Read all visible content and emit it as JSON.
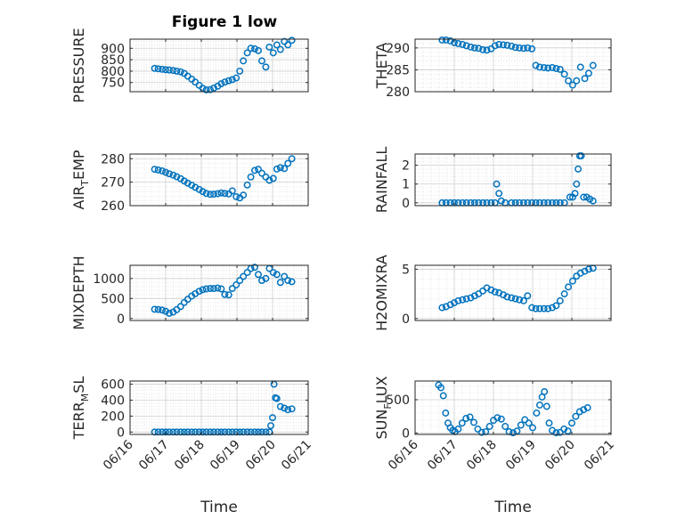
{
  "figure_title": "Figure 1 low",
  "marker_color": "#0072BD",
  "chart_data": [
    {
      "type": "scatter",
      "panel": "top-left",
      "title": "Figure 1 low",
      "ylabel": "PRESSURE",
      "ylim": [
        710,
        940
      ],
      "yticks": [
        750,
        800,
        850,
        900
      ],
      "x": [
        16.69,
        16.79,
        16.9,
        17.0,
        17.1,
        17.21,
        17.31,
        17.42,
        17.52,
        17.62,
        17.73,
        17.83,
        17.94,
        18.04,
        18.14,
        18.25,
        18.35,
        18.46,
        18.56,
        18.66,
        18.77,
        18.87,
        18.98,
        19.08,
        19.18,
        19.29,
        19.39,
        19.5,
        19.6,
        19.7,
        19.81,
        19.91,
        20.02,
        20.12,
        20.22,
        20.33,
        20.43,
        20.54
      ],
      "values": [
        812,
        810,
        808,
        806,
        805,
        803,
        800,
        797,
        790,
        778,
        765,
        752,
        738,
        725,
        718,
        719,
        726,
        734,
        745,
        752,
        758,
        763,
        770,
        800,
        845,
        880,
        900,
        898,
        890,
        845,
        818,
        905,
        880,
        915,
        895,
        930,
        915,
        935
      ]
    },
    {
      "type": "scatter",
      "panel": "top-right",
      "ylabel": "THETA",
      "ylim": [
        280,
        292
      ],
      "yticks": [
        280,
        285,
        290
      ],
      "x": [
        16.69,
        16.79,
        16.9,
        17.0,
        17.1,
        17.21,
        17.31,
        17.42,
        17.52,
        17.62,
        17.73,
        17.83,
        17.94,
        18.04,
        18.14,
        18.25,
        18.35,
        18.46,
        18.56,
        18.66,
        18.77,
        18.87,
        18.98,
        19.08,
        19.18,
        19.29,
        19.39,
        19.5,
        19.6,
        19.7,
        19.81,
        19.91,
        20.02,
        20.12,
        20.22,
        20.33,
        20.43,
        20.54
      ],
      "values": [
        291.8,
        291.8,
        291.6,
        291.2,
        291.0,
        290.8,
        290.5,
        290.2,
        290.0,
        289.9,
        289.6,
        289.5,
        289.8,
        290.5,
        290.8,
        290.7,
        290.6,
        290.4,
        290.1,
        290.0,
        289.9,
        290.0,
        289.8,
        286.0,
        285.6,
        285.5,
        285.4,
        285.5,
        285.3,
        285.1,
        284.0,
        282.5,
        281.5,
        282.5,
        285.6,
        283.0,
        284.2,
        286.0
      ]
    },
    {
      "type": "scatter",
      "panel": "row2-left",
      "ylabel": "AIR_TEMP",
      "ylim": [
        260,
        282
      ],
      "yticks": [
        260,
        270,
        280
      ],
      "x": [
        16.69,
        16.79,
        16.9,
        17.0,
        17.1,
        17.21,
        17.31,
        17.42,
        17.52,
        17.62,
        17.73,
        17.83,
        17.94,
        18.04,
        18.14,
        18.25,
        18.35,
        18.46,
        18.56,
        18.66,
        18.77,
        18.87,
        18.98,
        19.08,
        19.18,
        19.29,
        19.39,
        19.5,
        19.6,
        19.7,
        19.81,
        19.91,
        20.02,
        20.12,
        20.22,
        20.33,
        20.43,
        20.54
      ],
      "values": [
        275.5,
        275.2,
        274.8,
        274.2,
        273.6,
        273.0,
        272.3,
        271.5,
        270.5,
        269.6,
        268.7,
        267.8,
        266.9,
        266.0,
        265.2,
        264.8,
        264.9,
        265.1,
        265.4,
        265.2,
        265.0,
        266.3,
        263.8,
        263.3,
        264.5,
        268.8,
        272.2,
        275.0,
        275.5,
        273.8,
        272.2,
        270.8,
        271.6,
        275.6,
        276.2,
        275.8,
        278.0,
        280.0
      ]
    },
    {
      "type": "scatter",
      "panel": "row2-right",
      "ylabel": "RAINFALL",
      "ylim": [
        -0.15,
        2.6
      ],
      "yticks": [
        0,
        1,
        2
      ],
      "x": [
        16.69,
        16.79,
        16.9,
        17.0,
        17.1,
        17.21,
        17.31,
        17.42,
        17.52,
        17.62,
        17.73,
        17.83,
        17.94,
        18.04,
        18.08,
        18.14,
        18.2,
        18.3,
        18.46,
        18.56,
        18.66,
        18.77,
        18.87,
        18.98,
        19.08,
        19.18,
        19.29,
        19.39,
        19.5,
        19.6,
        19.7,
        19.81,
        19.95,
        20.02,
        20.08,
        20.12,
        20.16,
        20.2,
        20.24,
        20.3,
        20.38,
        20.46,
        20.54
      ],
      "values": [
        0,
        0,
        0,
        0,
        0,
        0,
        0,
        0,
        0,
        0,
        0,
        0,
        0,
        0,
        1.0,
        0.5,
        0.1,
        0,
        0,
        0,
        0,
        0,
        0,
        0,
        0,
        0,
        0,
        0,
        0,
        0,
        0,
        0,
        0.3,
        0.3,
        0.5,
        1.0,
        1.8,
        2.5,
        2.5,
        0.3,
        0.3,
        0.2,
        0.1
      ]
    },
    {
      "type": "scatter",
      "panel": "row3-left",
      "ylabel": "MIXDEPTH",
      "ylim": [
        -50,
        1330
      ],
      "yticks": [
        0,
        500,
        1000
      ],
      "x": [
        16.69,
        16.79,
        16.9,
        17.0,
        17.1,
        17.21,
        17.31,
        17.42,
        17.52,
        17.62,
        17.73,
        17.83,
        17.94,
        18.04,
        18.14,
        18.25,
        18.35,
        18.46,
        18.56,
        18.66,
        18.77,
        18.87,
        18.98,
        19.08,
        19.18,
        19.29,
        19.39,
        19.5,
        19.6,
        19.7,
        19.81,
        19.91,
        20.02,
        20.12,
        20.22,
        20.33,
        20.43,
        20.54
      ],
      "values": [
        230,
        225,
        210,
        180,
        130,
        160,
        220,
        300,
        400,
        480,
        560,
        620,
        680,
        720,
        740,
        750,
        750,
        760,
        740,
        600,
        590,
        750,
        840,
        950,
        1050,
        1150,
        1250,
        1280,
        1100,
        950,
        1000,
        1250,
        1150,
        1100,
        900,
        1050,
        950,
        920
      ]
    },
    {
      "type": "scatter",
      "panel": "row3-right",
      "ylabel": "H2OMIXRA",
      "ylim": [
        -0.2,
        5.4
      ],
      "yticks": [
        0,
        5
      ],
      "x": [
        16.69,
        16.79,
        16.9,
        17.0,
        17.1,
        17.21,
        17.31,
        17.42,
        17.52,
        17.62,
        17.73,
        17.83,
        17.94,
        18.04,
        18.14,
        18.25,
        18.35,
        18.46,
        18.56,
        18.66,
        18.77,
        18.87,
        18.98,
        19.08,
        19.18,
        19.29,
        19.39,
        19.5,
        19.6,
        19.7,
        19.81,
        19.91,
        20.02,
        20.12,
        20.22,
        20.33,
        20.43,
        20.54
      ],
      "values": [
        1.1,
        1.2,
        1.4,
        1.6,
        1.8,
        1.9,
        2.0,
        2.1,
        2.3,
        2.5,
        2.8,
        3.1,
        2.9,
        2.7,
        2.6,
        2.4,
        2.2,
        2.1,
        2.0,
        1.9,
        1.8,
        2.3,
        1.1,
        1.0,
        1.0,
        1.0,
        1.0,
        1.1,
        1.3,
        1.8,
        2.5,
        3.2,
        3.8,
        4.3,
        4.6,
        4.8,
        5.0,
        5.1
      ]
    },
    {
      "type": "scatter",
      "panel": "bottom-left",
      "ylabel": "TERR_MSL",
      "ylim": [
        -30,
        640
      ],
      "yticks": [
        0,
        200,
        400,
        600
      ],
      "x": [
        16.69,
        16.79,
        16.9,
        17.0,
        17.1,
        17.21,
        17.31,
        17.42,
        17.52,
        17.62,
        17.73,
        17.83,
        17.94,
        18.04,
        18.14,
        18.25,
        18.35,
        18.46,
        18.56,
        18.66,
        18.77,
        18.87,
        18.98,
        19.08,
        19.18,
        19.29,
        19.39,
        19.5,
        19.6,
        19.7,
        19.81,
        19.91,
        19.95,
        20.0,
        20.04,
        20.08,
        20.12,
        20.22,
        20.33,
        20.43,
        20.54
      ],
      "values": [
        0,
        0,
        0,
        0,
        0,
        0,
        0,
        0,
        0,
        0,
        0,
        0,
        0,
        0,
        0,
        0,
        0,
        0,
        0,
        0,
        0,
        0,
        0,
        0,
        0,
        0,
        0,
        0,
        0,
        0,
        0,
        0,
        80,
        180,
        600,
        430,
        420,
        320,
        300,
        280,
        290
      ]
    },
    {
      "type": "scatter",
      "panel": "bottom-right",
      "ylabel": "SUN_FLUX",
      "ylim": [
        -20,
        780
      ],
      "yticks": [
        0,
        500
      ],
      "x": [
        16.6,
        16.66,
        16.72,
        16.78,
        16.84,
        16.9,
        16.96,
        17.02,
        17.1,
        17.2,
        17.3,
        17.4,
        17.5,
        17.6,
        17.7,
        17.8,
        17.9,
        18.0,
        18.1,
        18.2,
        18.3,
        18.4,
        18.5,
        18.6,
        18.7,
        18.8,
        18.9,
        19.0,
        19.1,
        19.18,
        19.24,
        19.3,
        19.36,
        19.42,
        19.5,
        19.6,
        19.7,
        19.8,
        19.9,
        20.0,
        20.1,
        20.2,
        20.3,
        20.4
      ],
      "values": [
        720,
        680,
        560,
        300,
        150,
        80,
        40,
        20,
        60,
        150,
        220,
        240,
        160,
        60,
        10,
        20,
        100,
        190,
        230,
        210,
        100,
        20,
        5,
        30,
        120,
        200,
        150,
        80,
        300,
        420,
        540,
        620,
        400,
        150,
        40,
        5,
        10,
        60,
        30,
        150,
        250,
        320,
        350,
        380
      ]
    }
  ],
  "x_axis": {
    "xlabel": "Time",
    "xlim": [
      16.0,
      21.0
    ],
    "ticks": [
      16,
      17,
      18,
      19,
      20,
      21
    ],
    "tick_labels": [
      "06/16",
      "06/17",
      "06/18",
      "06/19",
      "06/20",
      "06/21"
    ]
  },
  "grid": true
}
